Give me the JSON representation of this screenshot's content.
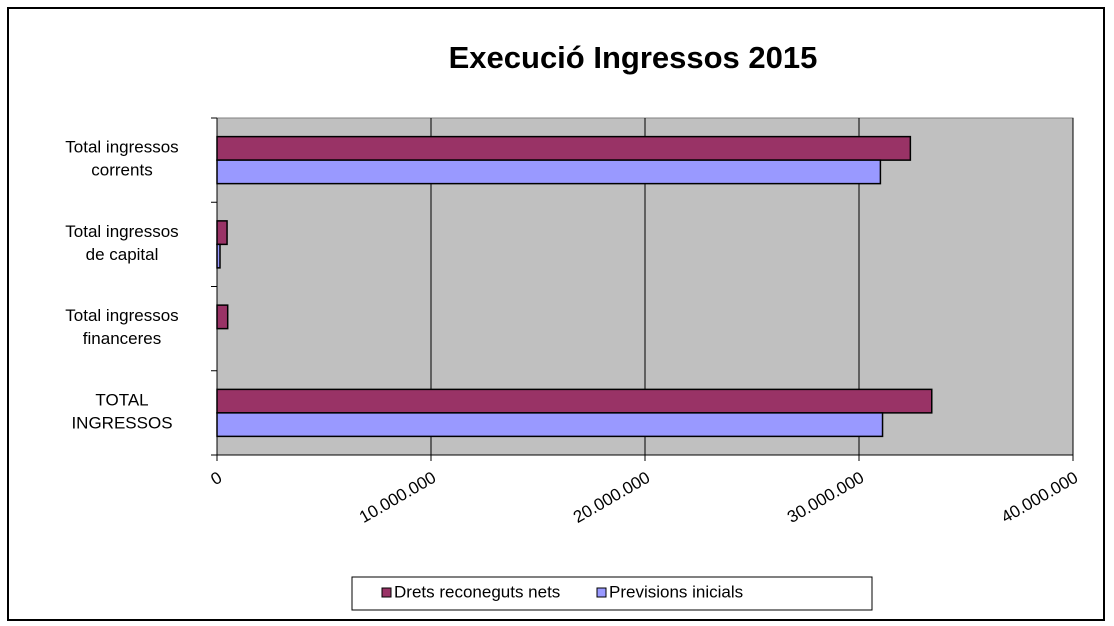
{
  "chart_data": {
    "type": "hbar",
    "title": "Execució Ingressos 2015",
    "categories": [
      "Total ingressos\ncorrents",
      "Total ingressos\nde capital",
      "Total ingressos\nfinanceres",
      "TOTAL\nINGRESSOS"
    ],
    "series": [
      {
        "name": "Drets reconeguts nets",
        "color": "#993366",
        "values": [
          32400000,
          470000,
          500000,
          33400000
        ]
      },
      {
        "name": "Previsions inicials",
        "color": "#9999ff",
        "values": [
          31000000,
          140000,
          0,
          31100000
        ]
      }
    ],
    "xlim": [
      0,
      40000000
    ],
    "xticks": [
      0,
      {
        "value": 10000000,
        "label": "10.000.000"
      },
      {
        "value": 20000000,
        "label": "20.000.000"
      },
      {
        "value": 30000000,
        "label": "30.000.000"
      },
      {
        "value": 40000000,
        "label": "40.000.000"
      }
    ],
    "grid": true,
    "legend": "bottom"
  }
}
